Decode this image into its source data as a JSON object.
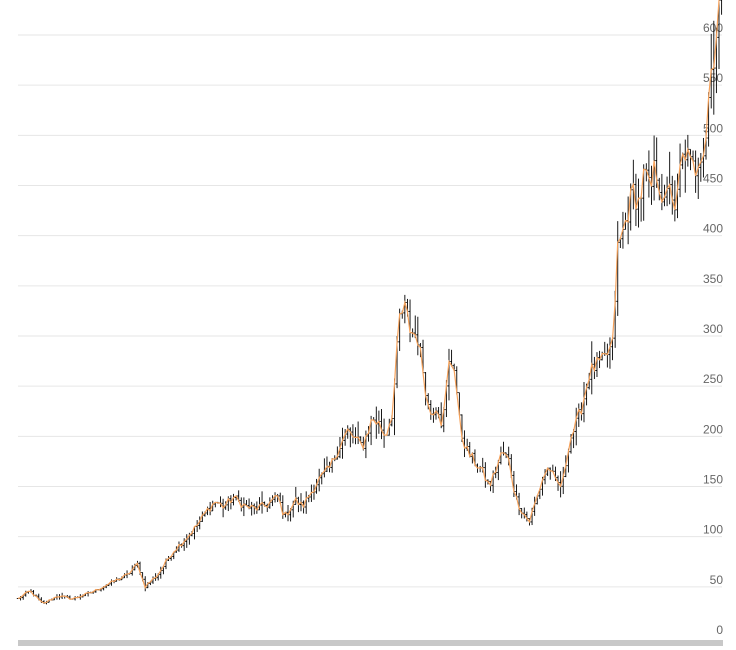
{
  "chart_data": {
    "type": "line",
    "title": "",
    "xlabel": "",
    "ylabel": "",
    "ylim": [
      0,
      620
    ],
    "y_ticks": [
      0,
      50,
      100,
      150,
      200,
      250,
      300,
      350,
      400,
      450,
      500,
      550,
      600
    ],
    "y_tick_labels": [
      "0",
      "50",
      "100",
      "150",
      "200",
      "250",
      "300",
      "350",
      "400",
      "450",
      "500",
      "550",
      "600"
    ],
    "grid": "horizontal",
    "series": [
      {
        "style": "ohlc-bars-with-close-line",
        "line_color": "#f7a35c",
        "bar_color": "#000000",
        "keypoints": [
          [
            0,
            38
          ],
          [
            12,
            46
          ],
          [
            25,
            33
          ],
          [
            40,
            41
          ],
          [
            55,
            38
          ],
          [
            75,
            45
          ],
          [
            95,
            55
          ],
          [
            110,
            62
          ],
          [
            120,
            73
          ],
          [
            127,
            50
          ],
          [
            140,
            62
          ],
          [
            155,
            85
          ],
          [
            170,
            100
          ],
          [
            180,
            112
          ],
          [
            190,
            127
          ],
          [
            198,
            135
          ],
          [
            206,
            130
          ],
          [
            216,
            139
          ],
          [
            228,
            130
          ],
          [
            238,
            128
          ],
          [
            250,
            132
          ],
          [
            260,
            140
          ],
          [
            267,
            120
          ],
          [
            278,
            136
          ],
          [
            285,
            130
          ],
          [
            300,
            155
          ],
          [
            312,
            168
          ],
          [
            322,
            190
          ],
          [
            330,
            205
          ],
          [
            345,
            190
          ],
          [
            355,
            218
          ],
          [
            362,
            212
          ],
          [
            368,
            200
          ],
          [
            375,
            225
          ],
          [
            382,
            318
          ],
          [
            388,
            328
          ],
          [
            393,
            305
          ],
          [
            400,
            300
          ],
          [
            405,
            270
          ],
          [
            412,
            222
          ],
          [
            420,
            232
          ],
          [
            425,
            210
          ],
          [
            432,
            275
          ],
          [
            437,
            270
          ],
          [
            443,
            205
          ],
          [
            450,
            185
          ],
          [
            457,
            175
          ],
          [
            465,
            165
          ],
          [
            472,
            150
          ],
          [
            478,
            165
          ],
          [
            485,
            185
          ],
          [
            492,
            175
          ],
          [
            498,
            140
          ],
          [
            505,
            125
          ],
          [
            512,
            115
          ],
          [
            520,
            140
          ],
          [
            526,
            160
          ],
          [
            532,
            170
          ],
          [
            538,
            155
          ],
          [
            545,
            150
          ],
          [
            552,
            195
          ],
          [
            560,
            215
          ],
          [
            566,
            235
          ],
          [
            572,
            262
          ],
          [
            578,
            270
          ],
          [
            586,
            275
          ],
          [
            592,
            285
          ],
          [
            596,
            292
          ],
          [
            600,
            385
          ],
          [
            605,
            400
          ],
          [
            610,
            420
          ],
          [
            616,
            445
          ],
          [
            622,
            432
          ],
          [
            628,
            465
          ],
          [
            633,
            440
          ],
          [
            638,
            470
          ],
          [
            643,
            450
          ],
          [
            648,
            425
          ],
          [
            653,
            460
          ],
          [
            658,
            415
          ],
          [
            663,
            465
          ],
          [
            668,
            485
          ],
          [
            673,
            470
          ],
          [
            678,
            465
          ],
          [
            683,
            485
          ],
          [
            688,
            488
          ],
          [
            693,
            558
          ],
          [
            698,
            590
          ],
          [
            703,
            640
          ]
        ]
      }
    ]
  }
}
